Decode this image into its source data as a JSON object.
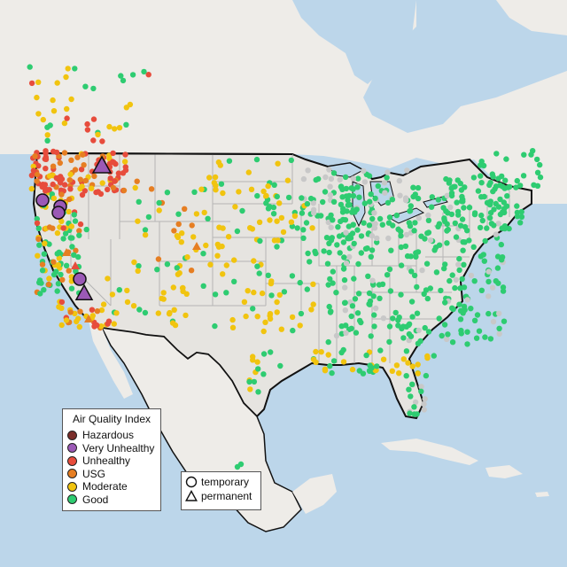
{
  "colors": {
    "hazardous": "#7a2e2a",
    "very_unhealthy": "#9b59b6",
    "unhealthy": "#e74c3c",
    "usg": "#e67e22",
    "moderate": "#f1c40f",
    "good": "#2ecc71",
    "water": "#bcd6ea",
    "land": "#ededea",
    "land_us": "#e5e3df",
    "border": "#111111",
    "state_line": "#b5b5b5"
  },
  "legend": {
    "title": "Air Quality Index",
    "items": [
      {
        "label": "Hazardous",
        "key": "hazardous"
      },
      {
        "label": "Very Unhealthy",
        "key": "very_unhealthy"
      },
      {
        "label": "Unhealthy",
        "key": "unhealthy"
      },
      {
        "label": "USG",
        "key": "usg"
      },
      {
        "label": "Moderate",
        "key": "moderate"
      },
      {
        "label": "Good",
        "key": "good"
      }
    ]
  },
  "shape_legend": {
    "items": [
      {
        "label": "temporary",
        "icon": "circle-outline-icon"
      },
      {
        "label": "permanent",
        "icon": "triangle-outline-icon"
      }
    ]
  }
}
